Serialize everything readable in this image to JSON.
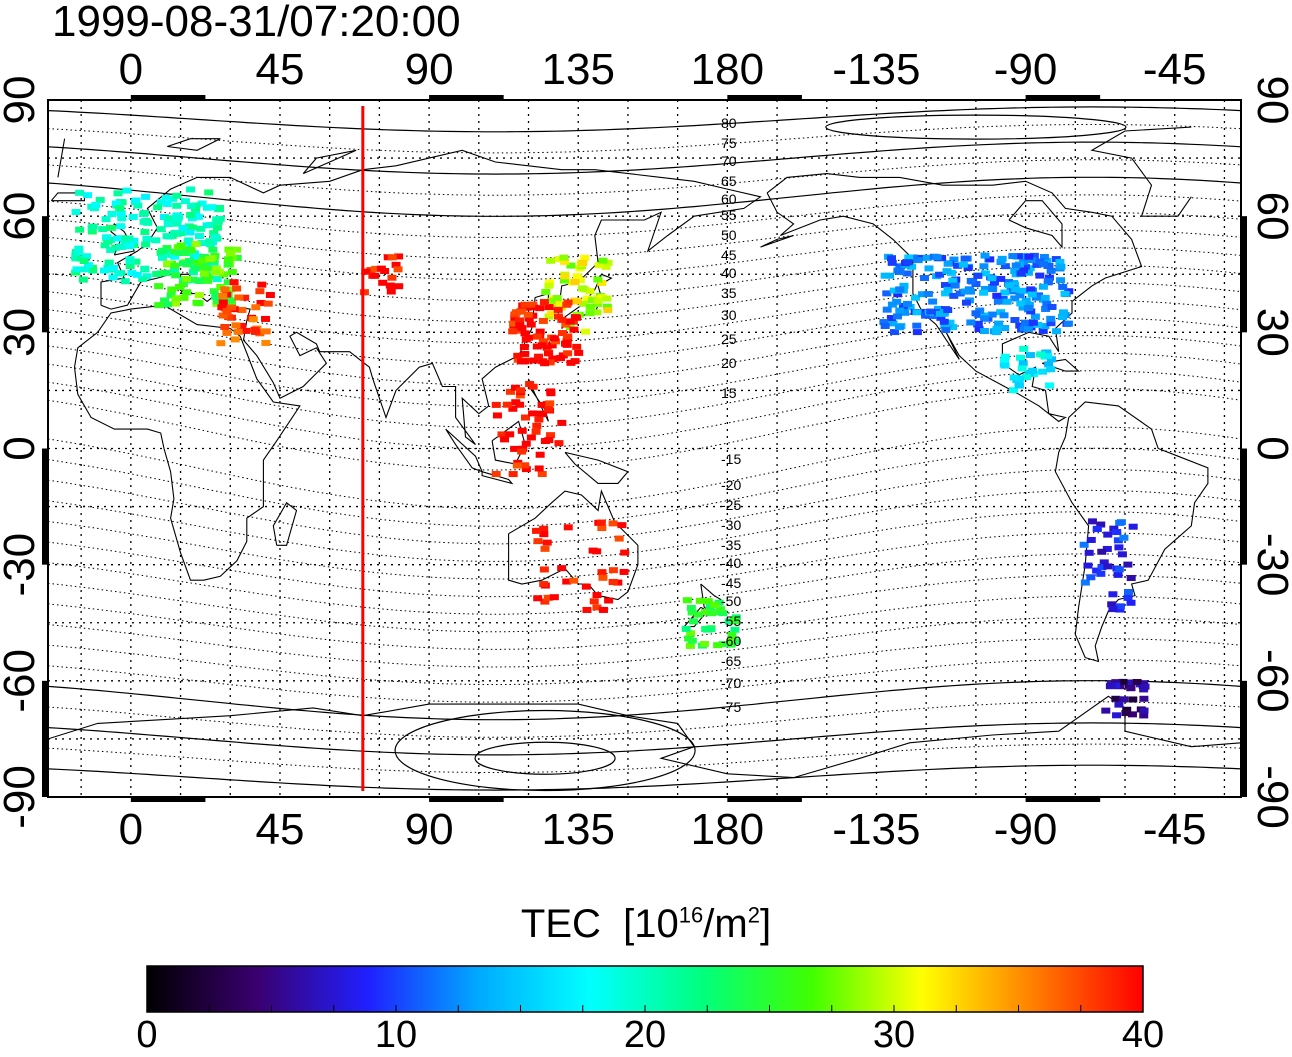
{
  "title": "1999-08-31/07:20:00",
  "axes": {
    "lon_ticks_top": [
      "0",
      "45",
      "90",
      "135",
      "180",
      "-135",
      "-90",
      "-45"
    ],
    "lon_ticks_bottom": [
      "0",
      "45",
      "90",
      "135",
      "180",
      "-135",
      "-90",
      "-45"
    ],
    "lat_ticks_left": [
      "90",
      "60",
      "30",
      "0",
      "-30",
      "-60",
      "-90"
    ],
    "lat_ticks_right": [
      "90",
      "60",
      "30",
      "0",
      "-30",
      "-60",
      "-90"
    ]
  },
  "contour_labels": [
    "80",
    "75",
    "70",
    "65",
    "60",
    "55",
    "50",
    "45",
    "40",
    "35",
    "30",
    "25",
    "20",
    "15",
    "-15",
    "-20",
    "-25",
    "-30",
    "-35",
    "-40",
    "-45",
    "-50",
    "-55",
    "-60",
    "-65",
    "-70",
    "-75"
  ],
  "colorbar": {
    "label_text": "TEC",
    "label_unit_base": "[10",
    "label_unit_exp": "16",
    "label_unit_mid": "/m",
    "label_unit_exp2": "2",
    "label_unit_end": "]",
    "ticks": [
      "0",
      "10",
      "20",
      "30",
      "40"
    ],
    "min": 0,
    "max": 40,
    "colors": [
      "#000000",
      "#3a0070",
      "#2020ff",
      "#00aaff",
      "#00ffff",
      "#00ff80",
      "#40ff00",
      "#ffff00",
      "#ff8000",
      "#ff0000"
    ]
  },
  "meridian_marker": {
    "longitude_deg": 70,
    "color": "#ff0000"
  },
  "chart_data": {
    "type": "heatmap",
    "title": "1999-08-31/07:20:00",
    "xlabel": "",
    "ylabel": "",
    "x_range": [
      -25,
      335
    ],
    "y_range": [
      -90,
      90
    ],
    "value_range": [
      0,
      40
    ],
    "regions": [
      {
        "lon": 5,
        "lat": 55,
        "tec": 20
      },
      {
        "lon": 20,
        "lat": 45,
        "tec": 26
      },
      {
        "lon": 35,
        "lat": 35,
        "tec": 38
      },
      {
        "lon": 75,
        "lat": 45,
        "tec": 40
      },
      {
        "lon": 135,
        "lat": 40,
        "tec": 30
      },
      {
        "lon": 125,
        "lat": 30,
        "tec": 40
      },
      {
        "lon": 120,
        "lat": 5,
        "tec": 40
      },
      {
        "lon": 135,
        "lat": -30,
        "tec": 40
      },
      {
        "lon": 175,
        "lat": -45,
        "tec": 25
      },
      {
        "lon": 255,
        "lat": 40,
        "tec": 12
      },
      {
        "lon": 270,
        "lat": 20,
        "tec": 17
      },
      {
        "lon": 295,
        "lat": -30,
        "tec": 9
      },
      {
        "lon": 300,
        "lat": -65,
        "tec": 5
      }
    ]
  }
}
